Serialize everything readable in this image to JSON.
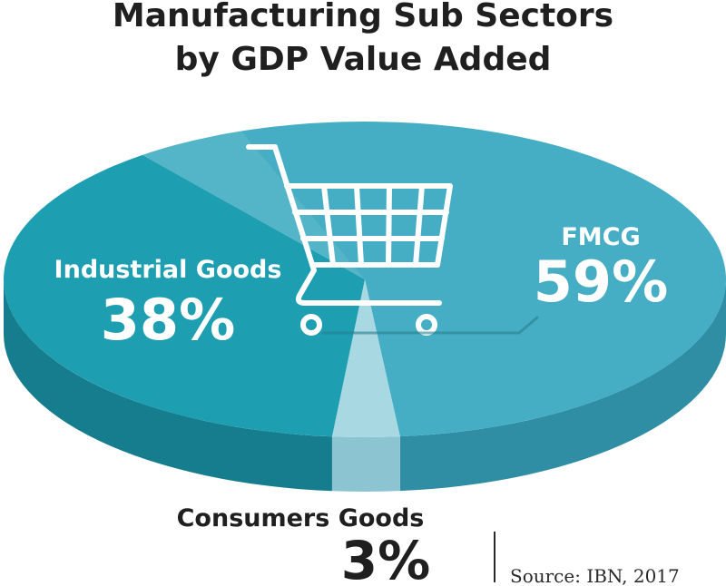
{
  "chart_data": {
    "type": "pie",
    "title_lines": [
      "Manufacturing Sub Sectors",
      "by GDP Value Added"
    ],
    "slices": [
      {
        "name": "FMCG",
        "value": 59,
        "label": "59%",
        "color": "#46aec4",
        "side_color": "#2f8ea3"
      },
      {
        "name": "Industrial Goods",
        "value": 38,
        "label": "38%",
        "color": "#1d9eb1",
        "side_color": "#157d8e"
      },
      {
        "name": "Consumers Goods",
        "value": 3,
        "label": "3%",
        "color": "#a8d8e2",
        "side_color": "#8cc5d1"
      }
    ]
  },
  "source": "Source: IBN, 2017",
  "icon": "shopping-cart-icon",
  "colors": {
    "title": "#1f1f1f",
    "background": "#ffffff"
  }
}
